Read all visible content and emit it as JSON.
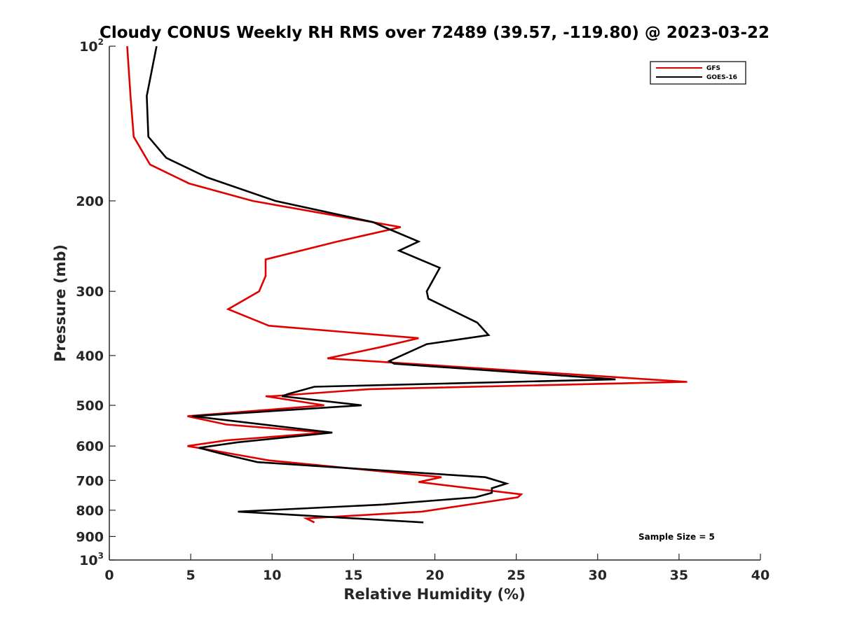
{
  "chart_data": {
    "type": "line",
    "title": "Cloudy CONUS Weekly RH RMS over 72489 (39.57, -119.80) @ 2023-03-22",
    "xlabel": "Relative Humidity (%)",
    "ylabel": "Pressure (mb)",
    "xlim": [
      0,
      40
    ],
    "ylim": [
      100,
      1000
    ],
    "yscale": "log",
    "y_reversed": true,
    "grid": false,
    "legend_position": "top-right",
    "xticks": [
      0,
      5,
      10,
      15,
      20,
      25,
      30,
      35,
      40
    ],
    "xtick_labels": [
      "0",
      "5",
      "10",
      "15",
      "20",
      "25",
      "30",
      "35",
      "40"
    ],
    "yticks": [
      100,
      200,
      300,
      400,
      500,
      600,
      700,
      800,
      900,
      1000
    ],
    "ytick_labels": [
      {
        "base": "10",
        "exp": "2"
      },
      {
        "base": "200",
        "exp": ""
      },
      {
        "base": "300",
        "exp": ""
      },
      {
        "base": "400",
        "exp": ""
      },
      {
        "base": "500",
        "exp": ""
      },
      {
        "base": "600",
        "exp": ""
      },
      {
        "base": "700",
        "exp": ""
      },
      {
        "base": "800",
        "exp": ""
      },
      {
        "base": "900",
        "exp": ""
      },
      {
        "base": "10",
        "exp": "3"
      }
    ],
    "series": [
      {
        "name": "GFS",
        "color": "#e00000",
        "points": [
          [
            1.1,
            100
          ],
          [
            1.3,
            125
          ],
          [
            1.5,
            150
          ],
          [
            2.5,
            170
          ],
          [
            4.9,
            185
          ],
          [
            8.8,
            200
          ],
          [
            17.9,
            225
          ],
          [
            14.0,
            240
          ],
          [
            9.6,
            260
          ],
          [
            9.6,
            280
          ],
          [
            9.2,
            300
          ],
          [
            7.3,
            325
          ],
          [
            9.8,
            350
          ],
          [
            19.0,
            370
          ],
          [
            16.7,
            385
          ],
          [
            13.4,
            405
          ],
          [
            35.5,
            450
          ],
          [
            16.0,
            465
          ],
          [
            10.0,
            480
          ],
          [
            9.6,
            480
          ],
          [
            13.2,
            500
          ],
          [
            4.8,
            525
          ],
          [
            7.2,
            545
          ],
          [
            13.3,
            565
          ],
          [
            7.2,
            585
          ],
          [
            4.8,
            600
          ],
          [
            6.1,
            610
          ],
          [
            9.8,
            640
          ],
          [
            20.4,
            690
          ],
          [
            19.0,
            705
          ],
          [
            25.3,
            745
          ],
          [
            25.1,
            755
          ],
          [
            19.2,
            805
          ],
          [
            12.1,
            830
          ],
          [
            12.6,
            845
          ]
        ]
      },
      {
        "name": "GOES-16",
        "color": "#000000",
        "points": [
          [
            2.9,
            100
          ],
          [
            2.3,
            125
          ],
          [
            2.4,
            150
          ],
          [
            3.5,
            165
          ],
          [
            6.0,
            180
          ],
          [
            10.2,
            200
          ],
          [
            16.2,
            220
          ],
          [
            16.9,
            225
          ],
          [
            19.0,
            240
          ],
          [
            17.8,
            250
          ],
          [
            20.3,
            270
          ],
          [
            19.5,
            300
          ],
          [
            19.6,
            310
          ],
          [
            22.6,
            345
          ],
          [
            23.3,
            365
          ],
          [
            19.5,
            380
          ],
          [
            17.2,
            410
          ],
          [
            17.5,
            415
          ],
          [
            31.1,
            445
          ],
          [
            12.6,
            460
          ],
          [
            11.0,
            475
          ],
          [
            10.6,
            480
          ],
          [
            15.5,
            500
          ],
          [
            5.1,
            525
          ],
          [
            13.7,
            565
          ],
          [
            7.9,
            590
          ],
          [
            5.5,
            605
          ],
          [
            6.8,
            620
          ],
          [
            9.1,
            645
          ],
          [
            23.1,
            690
          ],
          [
            24.4,
            710
          ],
          [
            23.5,
            725
          ],
          [
            23.5,
            740
          ],
          [
            22.5,
            755
          ],
          [
            16.8,
            780
          ],
          [
            7.9,
            805
          ],
          [
            19.3,
            845
          ]
        ]
      }
    ],
    "annotations": [
      "Sample Size = 5"
    ]
  }
}
